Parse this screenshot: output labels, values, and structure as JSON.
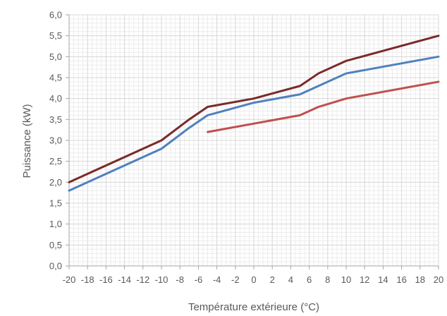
{
  "chart_data": {
    "type": "line",
    "title": "",
    "xlabel": "Température extérieure (°C)",
    "ylabel": "Puissance (kW)",
    "xlim": [
      -20,
      20
    ],
    "ylim": [
      0,
      6
    ],
    "x_ticks": [
      -20,
      -18,
      -16,
      -14,
      -12,
      -10,
      -8,
      -6,
      -4,
      -2,
      0,
      2,
      4,
      6,
      8,
      10,
      12,
      14,
      16,
      18,
      20
    ],
    "y_ticks": [
      "0,0",
      "0,5",
      "1,0",
      "1,5",
      "2,0",
      "2,5",
      "3,0",
      "3,5",
      "4,0",
      "4,5",
      "5,0",
      "5,5",
      "6,0"
    ],
    "grid": true,
    "legend": "none",
    "series": [
      {
        "color": "#7b2a2a",
        "points": [
          [
            -20,
            2.0
          ],
          [
            -10,
            3.0
          ],
          [
            -7,
            3.5
          ],
          [
            -5,
            3.8
          ],
          [
            0,
            4.0
          ],
          [
            5,
            4.3
          ],
          [
            7,
            4.6
          ],
          [
            10,
            4.9
          ],
          [
            20,
            5.5
          ]
        ]
      },
      {
        "color": "#4f81bd",
        "points": [
          [
            -20,
            1.8
          ],
          [
            -10,
            2.8
          ],
          [
            -7,
            3.3
          ],
          [
            -5,
            3.6
          ],
          [
            0,
            3.9
          ],
          [
            5,
            4.1
          ],
          [
            7,
            4.3
          ],
          [
            10,
            4.6
          ],
          [
            20,
            5.0
          ]
        ]
      },
      {
        "color": "#c0504d",
        "points": [
          [
            -5,
            3.2
          ],
          [
            5,
            3.6
          ],
          [
            7,
            3.8
          ],
          [
            10,
            4.0
          ],
          [
            20,
            4.4
          ]
        ]
      }
    ]
  }
}
